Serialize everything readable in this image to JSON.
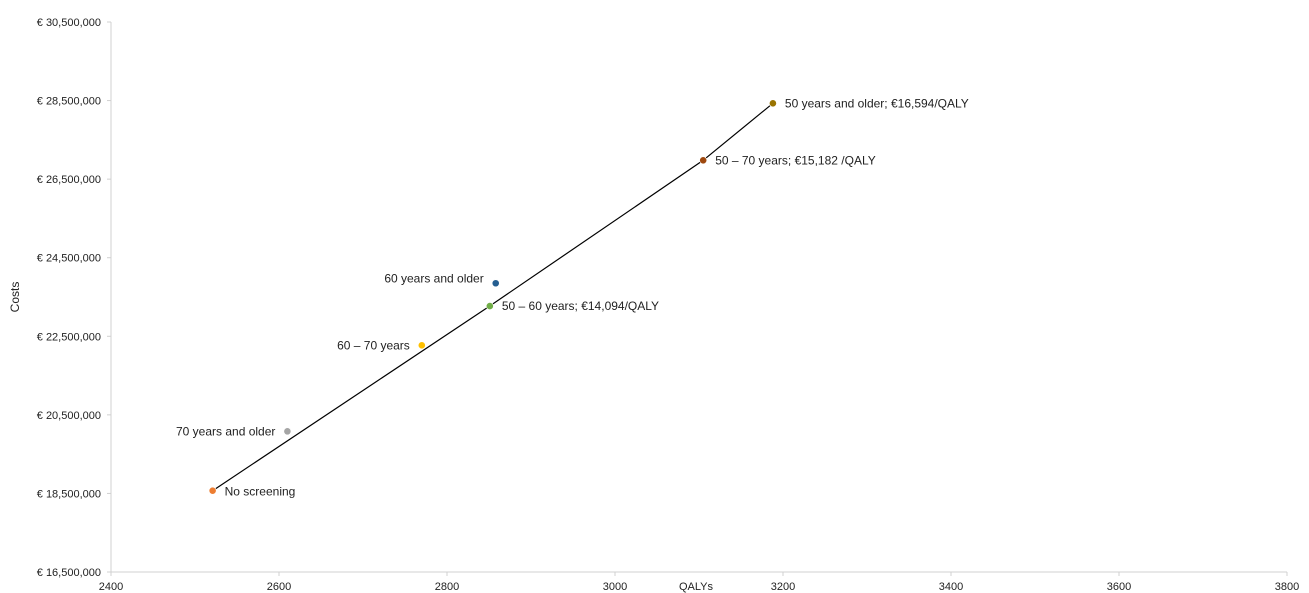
{
  "chart_data": {
    "type": "scatter",
    "title": "",
    "xlabel": "QALYs",
    "ylabel": "Costs",
    "xlim": [
      2400,
      3800
    ],
    "ylim": [
      16500000,
      30500000
    ],
    "x_ticks": [
      2400,
      2600,
      2800,
      3000,
      3200,
      3400,
      3600,
      3800
    ],
    "y_ticks": [
      {
        "value": 16500000,
        "label": "€ 16,500,000"
      },
      {
        "value": 18500000,
        "label": "€ 18,500,000"
      },
      {
        "value": 20500000,
        "label": "€ 20,500,000"
      },
      {
        "value": 22500000,
        "label": "€ 22,500,000"
      },
      {
        "value": 24500000,
        "label": "€ 24,500,000"
      },
      {
        "value": 26500000,
        "label": "€ 26,500,000"
      },
      {
        "value": 28500000,
        "label": "€ 28,500,000"
      },
      {
        "value": 30500000,
        "label": "€ 30,500,000"
      }
    ],
    "grid": false,
    "points": [
      {
        "id": "no-screening",
        "label": "No screening",
        "x": 2521,
        "y": 18570000,
        "color": "#ed7d31",
        "label_side": "right"
      },
      {
        "id": "70-years-and-older",
        "label": "70 years and older",
        "x": 2610,
        "y": 20080000,
        "color": "#a5a5a5",
        "label_side": "left"
      },
      {
        "id": "60-70-years",
        "label": "60 – 70 years",
        "x": 2770,
        "y": 22270000,
        "color": "#ffc000",
        "label_side": "left"
      },
      {
        "id": "50-60-years",
        "label": "50 – 60 years; €14,094/QALY",
        "x": 2851,
        "y": 23270000,
        "color": "#70ad47",
        "label_side": "right"
      },
      {
        "id": "60-years-and-older",
        "label": "60 years and older",
        "x": 2858,
        "y": 23850000,
        "color": "#255e91",
        "label_side": "left"
      },
      {
        "id": "50-70-years",
        "label": "50 – 70 years; €15,182 /QALY",
        "x": 3105,
        "y": 26980000,
        "color": "#9e480e",
        "label_side": "right"
      },
      {
        "id": "50-years-and-older",
        "label": "50 years and older; €16,594/QALY",
        "x": 3188,
        "y": 28430000,
        "color": "#997300",
        "label_side": "right"
      }
    ],
    "frontier": [
      "no-screening",
      "50-60-years",
      "50-70-years",
      "50-years-and-older"
    ]
  }
}
